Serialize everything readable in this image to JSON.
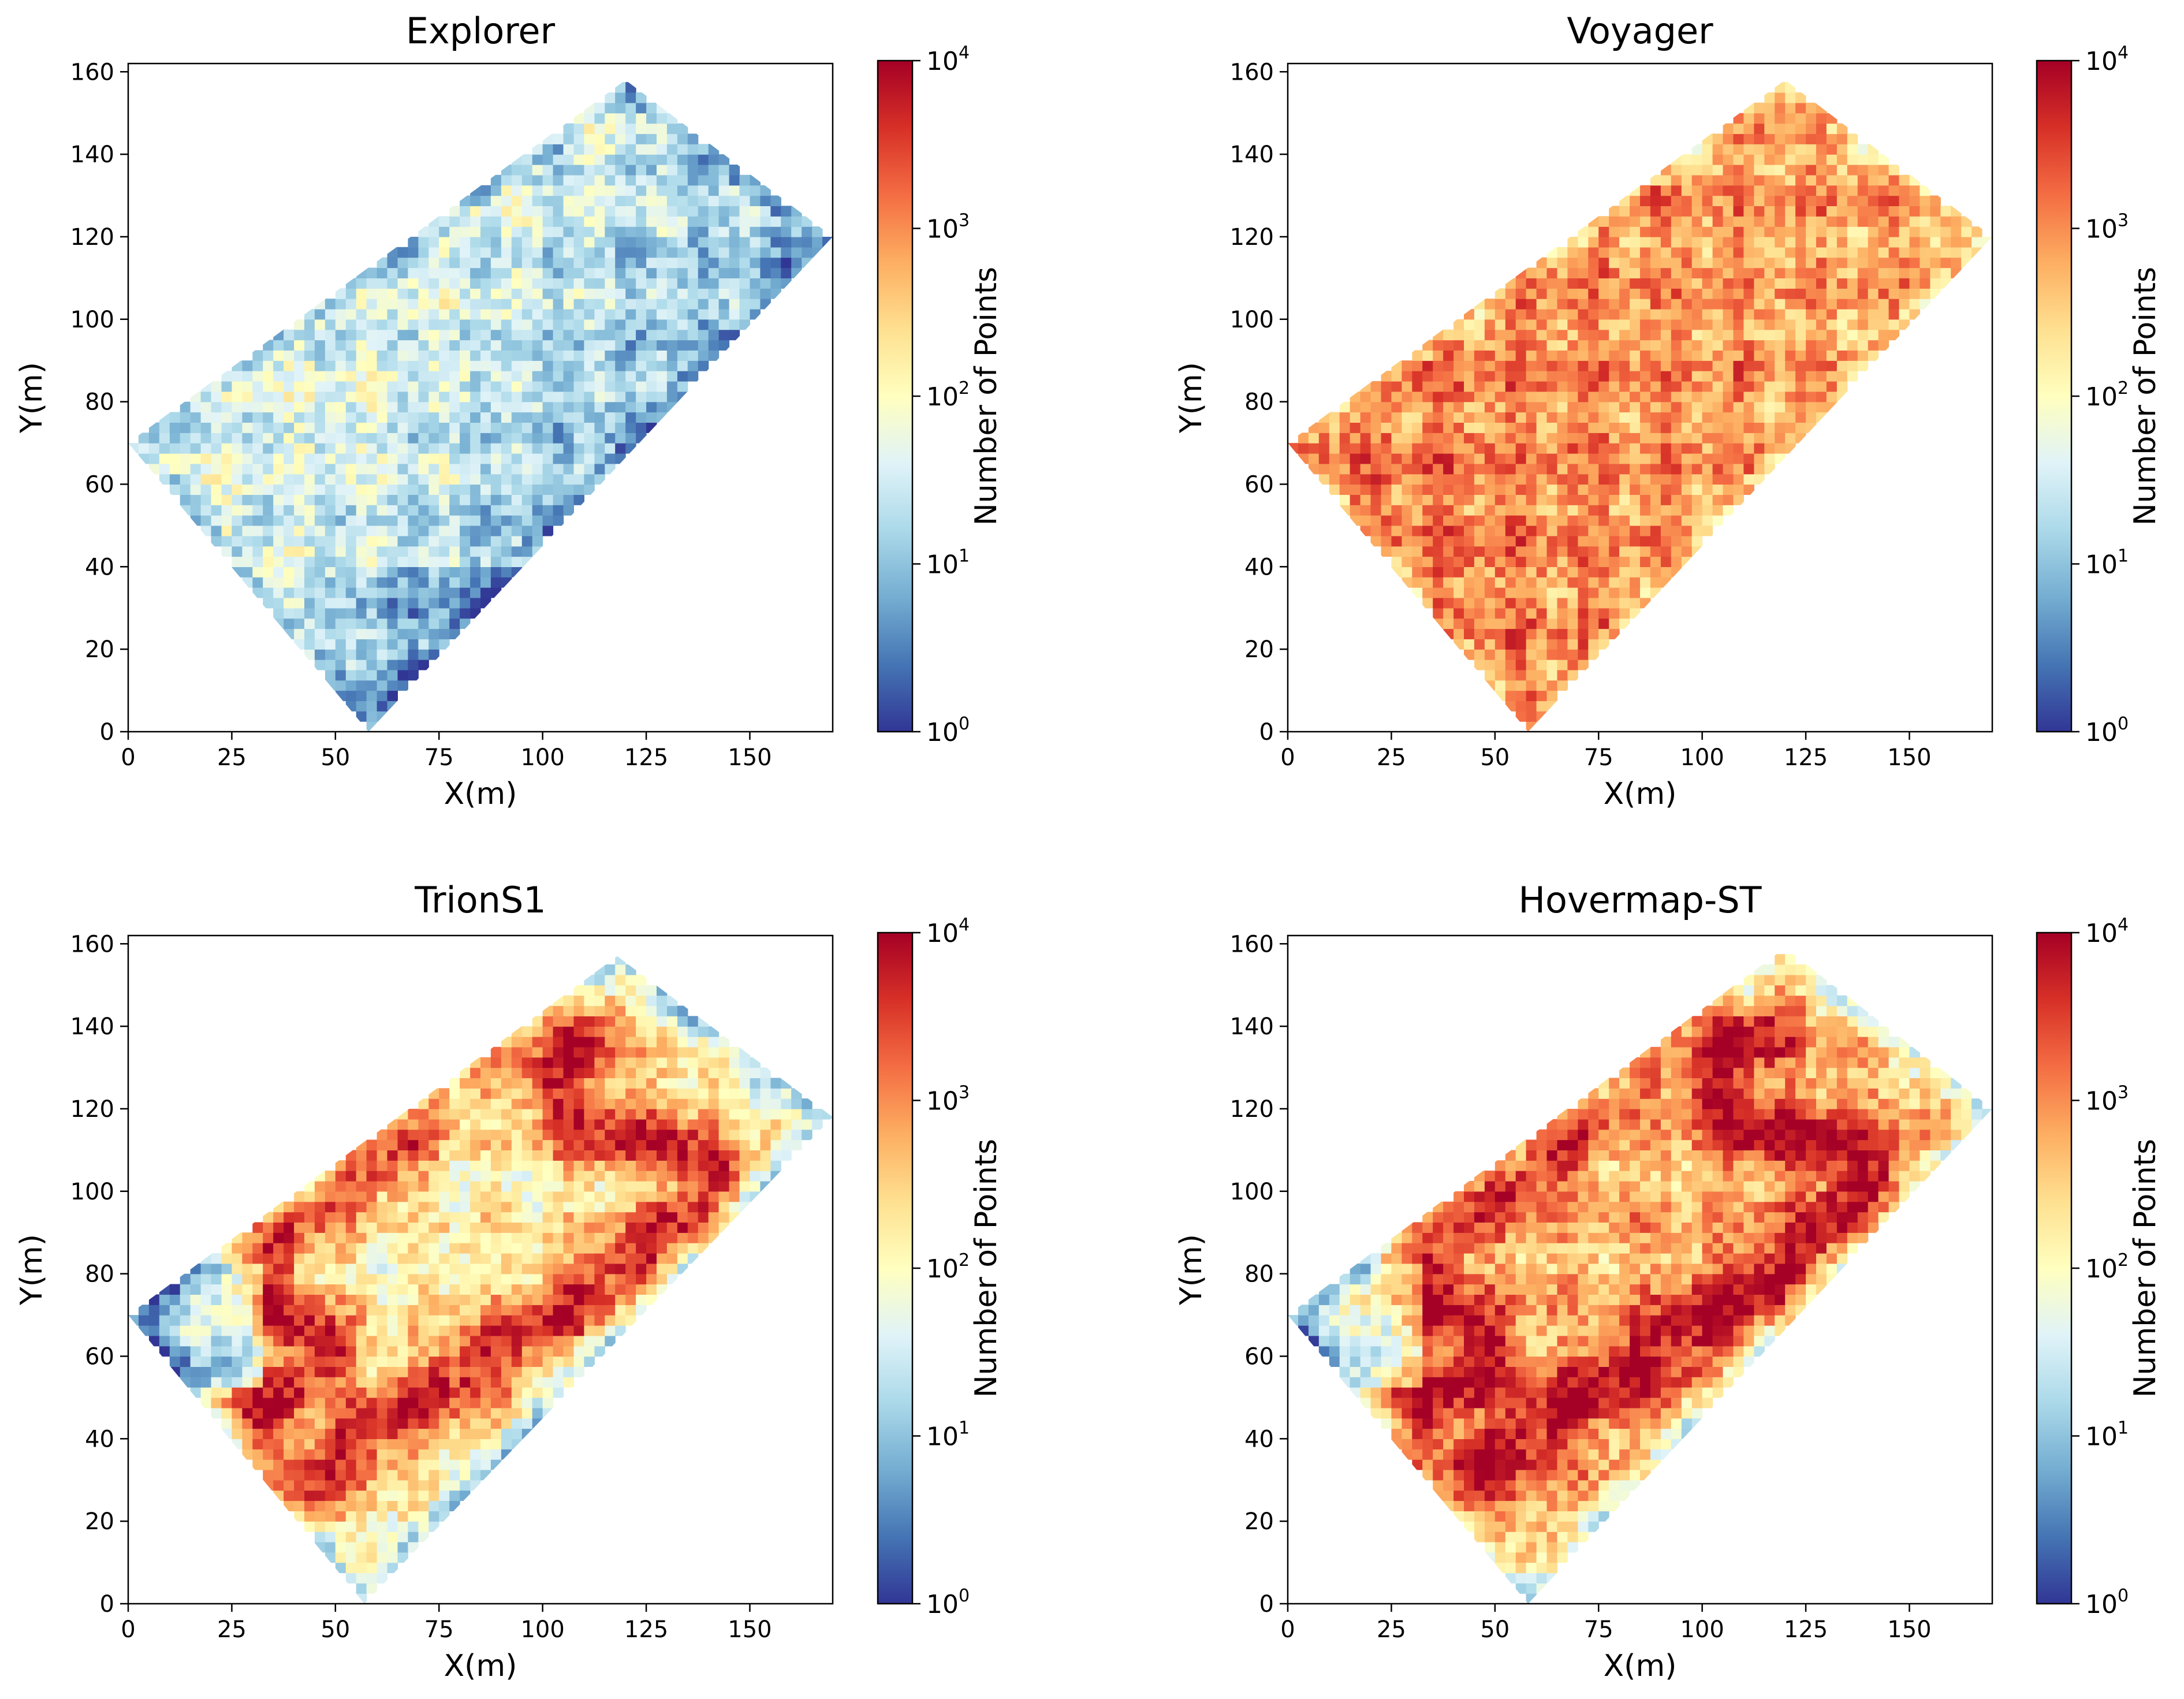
{
  "chart_data": [
    {
      "type": "heatmap",
      "title": "Explorer",
      "xlabel": "X(m)",
      "ylabel": "Y(m)",
      "xlim": [
        0,
        170
      ],
      "ylim": [
        0,
        162
      ],
      "xticks": [
        0,
        25,
        50,
        75,
        100,
        125,
        150
      ],
      "yticks": [
        0,
        20,
        40,
        60,
        80,
        100,
        120,
        140,
        160
      ],
      "colorbar": {
        "label": "Number of Points",
        "scale": "log",
        "range": [
          1,
          10000
        ],
        "ticks": [
          "10^0",
          "10^1",
          "10^2",
          "10^3",
          "10^4"
        ]
      },
      "boundary": [
        [
          0,
          70
        ],
        [
          120,
          158
        ],
        [
          170,
          120
        ],
        [
          58,
          0
        ]
      ],
      "density_profile": "mostly 10^1 to 10^2, light blue and yellow, sparse dark blue toward bottom-right edge",
      "base_log10_density": 1.6
    },
    {
      "type": "heatmap",
      "title": "Voyager",
      "xlabel": "X(m)",
      "ylabel": "Y(m)",
      "xlim": [
        0,
        170
      ],
      "ylim": [
        0,
        162
      ],
      "xticks": [
        0,
        25,
        50,
        75,
        100,
        125,
        150
      ],
      "yticks": [
        0,
        20,
        40,
        60,
        80,
        100,
        120,
        140,
        160
      ],
      "colorbar": {
        "label": "Number of Points",
        "scale": "log",
        "range": [
          1,
          10000
        ],
        "ticks": [
          "10^0",
          "10^1",
          "10^2",
          "10^3",
          "10^4"
        ]
      },
      "boundary": [
        [
          0,
          70
        ],
        [
          120,
          158
        ],
        [
          170,
          120
        ],
        [
          58,
          0
        ]
      ],
      "density_profile": "mostly 10^2.5 to 10^3.3, orange across the whole field",
      "base_log10_density": 2.9
    },
    {
      "type": "heatmap",
      "title": "TrionS1",
      "xlabel": "X(m)",
      "ylabel": "Y(m)",
      "xlim": [
        0,
        170
      ],
      "ylim": [
        0,
        162
      ],
      "xticks": [
        0,
        25,
        50,
        75,
        100,
        125,
        150
      ],
      "yticks": [
        0,
        20,
        40,
        60,
        80,
        100,
        120,
        140,
        160
      ],
      "colorbar": {
        "label": "Number of Points",
        "scale": "log",
        "range": [
          1,
          10000
        ],
        "ticks": [
          "10^0",
          "10^1",
          "10^2",
          "10^3",
          "10^4"
        ]
      },
      "boundary": [
        [
          0,
          70
        ],
        [
          118,
          157
        ],
        [
          170,
          118
        ],
        [
          57,
          0
        ]
      ],
      "density_profile": "dense red walking trajectory loop (~10^3.5) over yellow field, blue sparse edges",
      "base_log10_density": 2.2
    },
    {
      "type": "heatmap",
      "title": "Hovermap-ST",
      "xlabel": "X(m)",
      "ylabel": "Y(m)",
      "xlim": [
        0,
        170
      ],
      "ylim": [
        0,
        162
      ],
      "xticks": [
        0,
        25,
        50,
        75,
        100,
        125,
        150
      ],
      "yticks": [
        0,
        20,
        40,
        60,
        80,
        100,
        120,
        140,
        160
      ],
      "colorbar": {
        "label": "Number of Points",
        "scale": "log",
        "range": [
          1,
          10000
        ],
        "ticks": [
          "10^0",
          "10^1",
          "10^2",
          "10^3",
          "10^4"
        ]
      },
      "boundary": [
        [
          0,
          70
        ],
        [
          120,
          159
        ],
        [
          170,
          120
        ],
        [
          58,
          0
        ]
      ],
      "density_profile": "dense dark red trajectory loop (~10^3.8) over orange field, blue sparse patch on left",
      "base_log10_density": 2.7
    }
  ],
  "colormap": {
    "name": "RdYlBu_r",
    "stops": [
      "#313695",
      "#4575b4",
      "#74add1",
      "#abd9e9",
      "#e0f3f8",
      "#ffffbf",
      "#fee090",
      "#fdae61",
      "#f46d43",
      "#d73027",
      "#a50026"
    ]
  },
  "track_path": [
    [
      38,
      24
    ],
    [
      52,
      38
    ],
    [
      75,
      52
    ],
    [
      100,
      68
    ],
    [
      125,
      85
    ],
    [
      142,
      103
    ],
    [
      130,
      112
    ],
    [
      110,
      116
    ],
    [
      102,
      128
    ],
    [
      112,
      138
    ],
    [
      95,
      142
    ],
    [
      75,
      128
    ],
    [
      60,
      108
    ],
    [
      45,
      100
    ],
    [
      30,
      88
    ],
    [
      36,
      72
    ],
    [
      48,
      60
    ],
    [
      30,
      45
    ],
    [
      30,
      30
    ],
    [
      38,
      24
    ]
  ]
}
